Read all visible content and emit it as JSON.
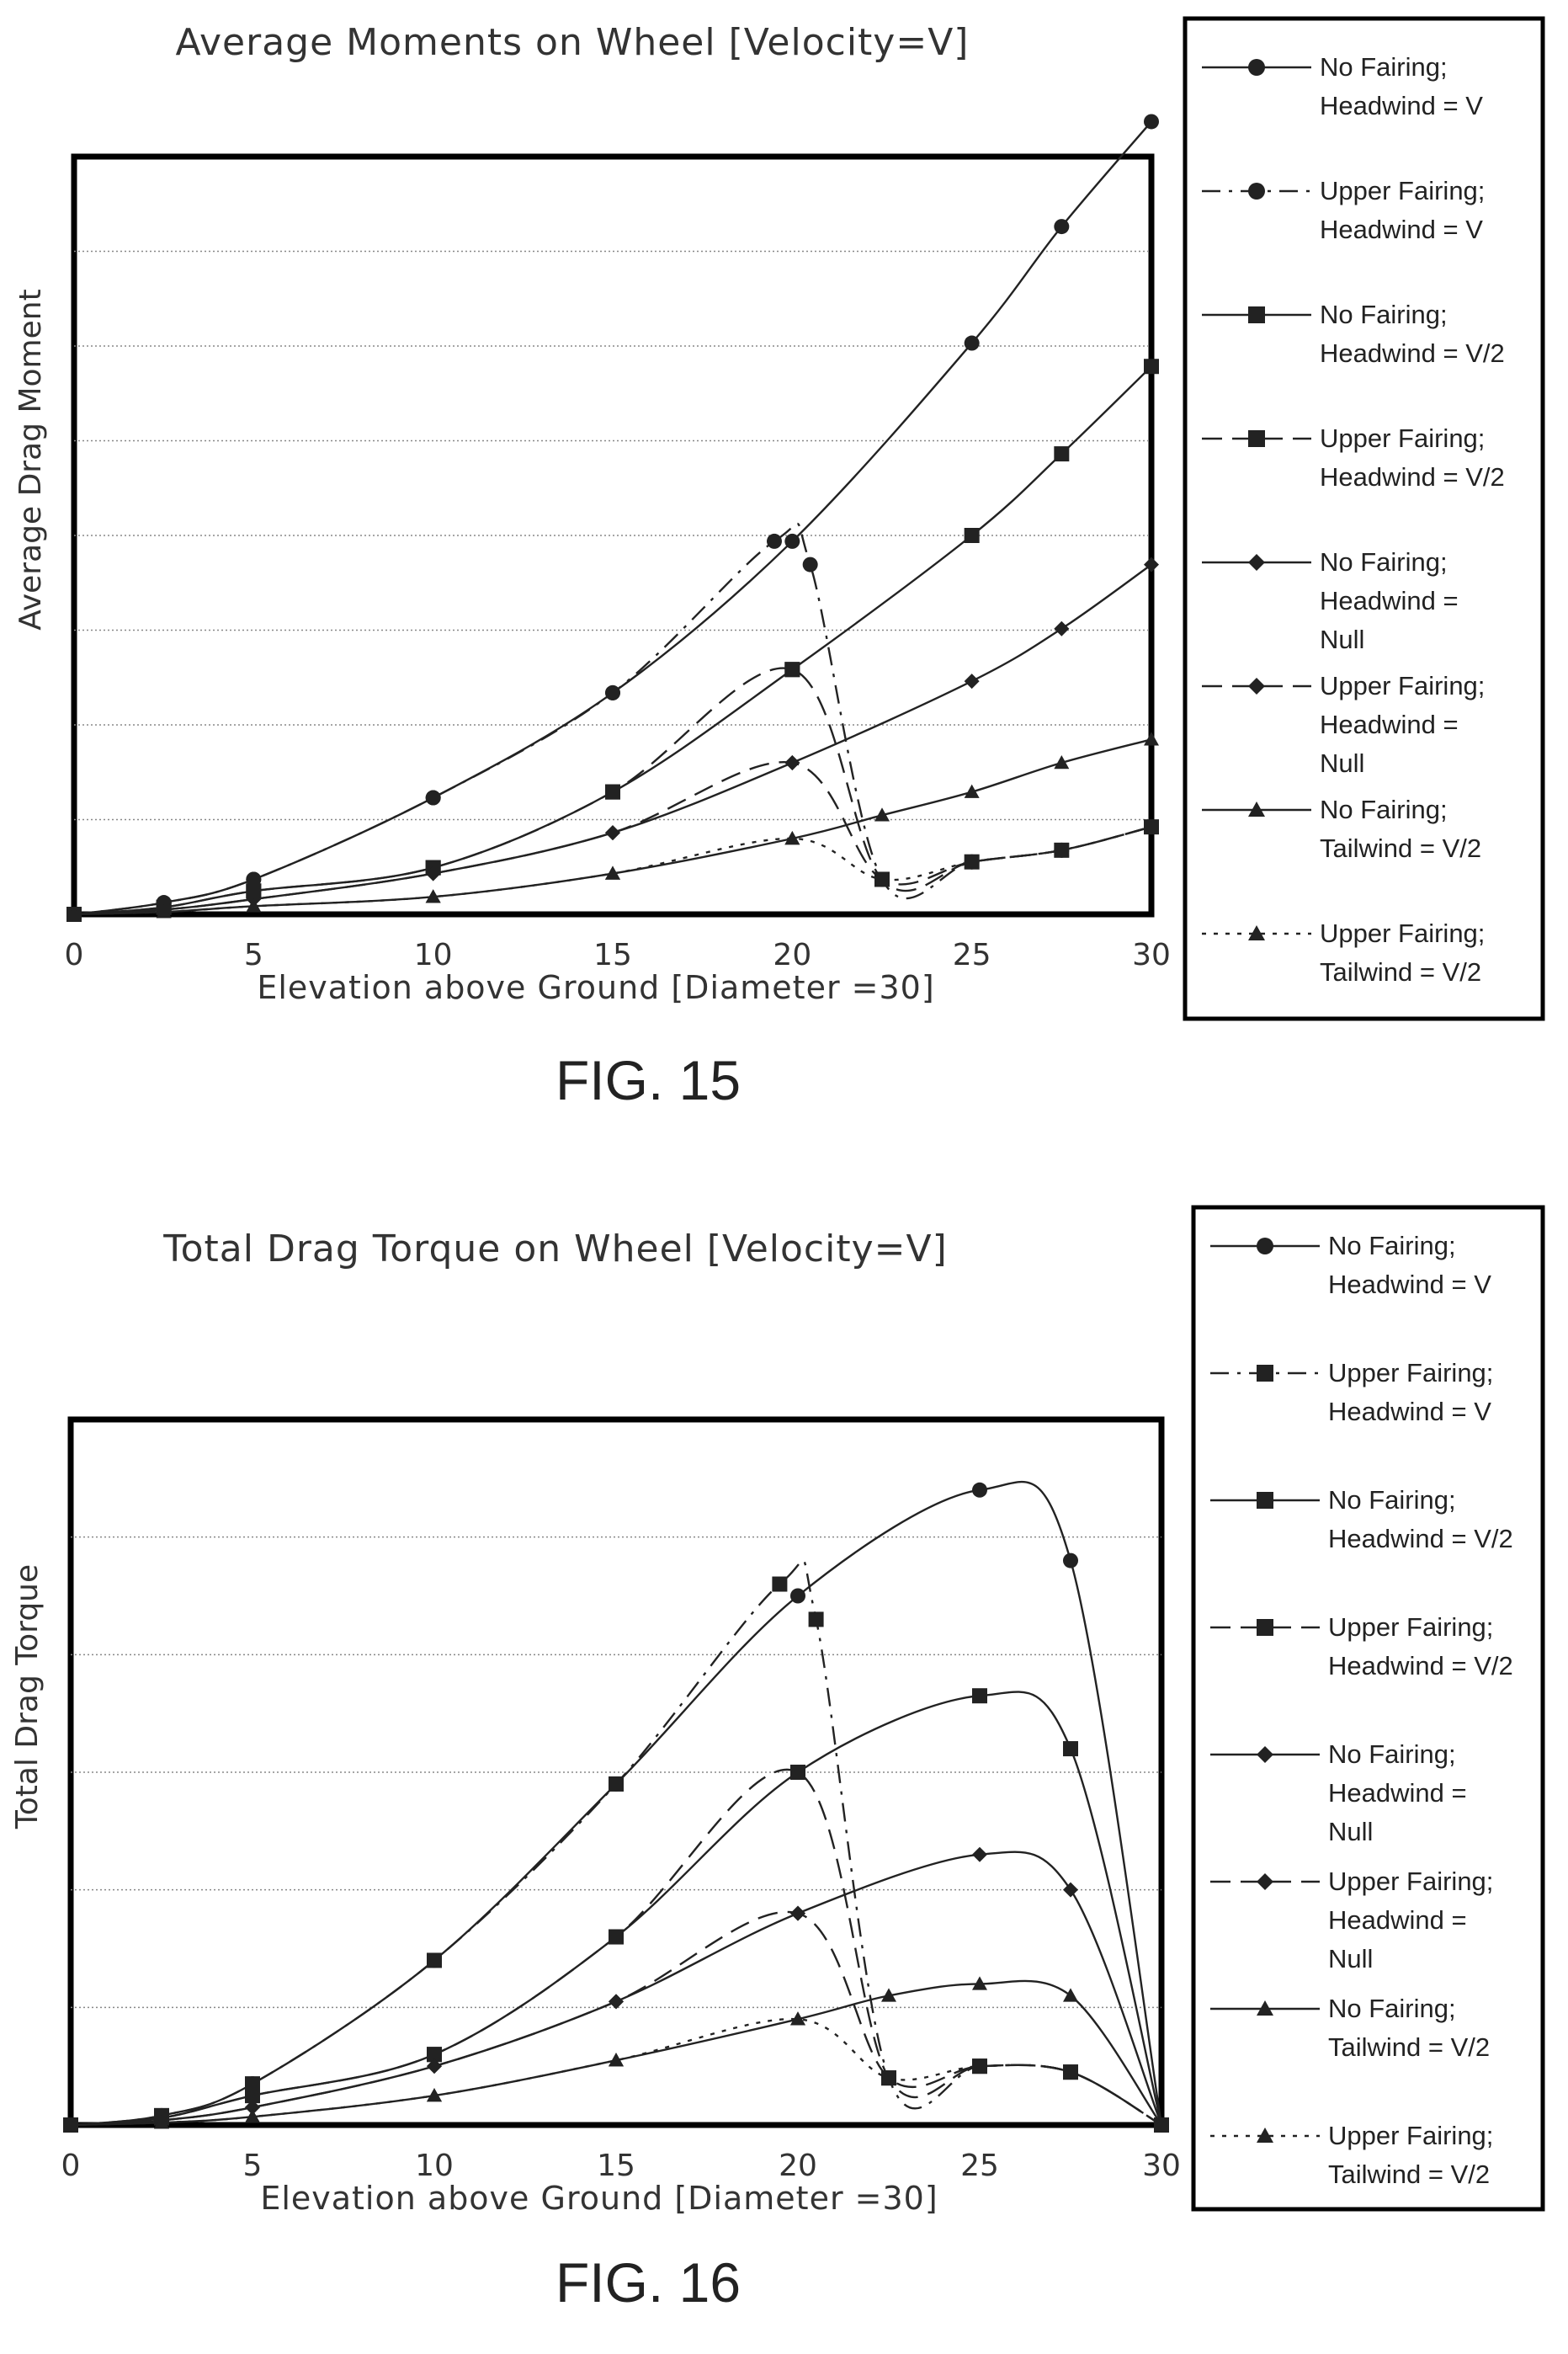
{
  "chart_data": [
    {
      "type": "line",
      "title": "Average Moments on Wheel [Velocity=V]",
      "xlabel": "Elevation above Ground [Diameter =30]",
      "ylabel": "Average Drag Moment",
      "caption": "FIG. 15",
      "x_ticks": [
        "0",
        "5",
        "10",
        "15",
        "20",
        "25",
        "30"
      ],
      "xlim": [
        0,
        30
      ],
      "ylim": [
        0,
        6.5
      ],
      "grid": "horizontal",
      "legend_position": "right",
      "series": [
        {
          "name": "No Fairing; Headwind = V",
          "line": "solid",
          "marker": "circle",
          "x": [
            0,
            2.5,
            5,
            10,
            15,
            20,
            25,
            27.5,
            30
          ],
          "y": [
            0,
            0.1,
            0.3,
            1.0,
            1.9,
            3.2,
            4.9,
            5.9,
            6.8
          ]
        },
        {
          "name": "Upper Fairing; Headwind = V",
          "line": "dashdot",
          "marker": "circle",
          "x": [
            0,
            2.5,
            5,
            10,
            15,
            19.5,
            20.5,
            22.5,
            25,
            27.5,
            30
          ],
          "y": [
            0,
            0.1,
            0.3,
            1.0,
            1.9,
            3.2,
            3.0,
            0.3,
            0.45,
            0.55,
            0.75
          ]
        },
        {
          "name": "No Fairing; Headwind = V/2",
          "line": "solid",
          "marker": "square",
          "x": [
            0,
            2.5,
            5,
            10,
            15,
            20,
            25,
            27.5,
            30
          ],
          "y": [
            0,
            0.06,
            0.2,
            0.4,
            1.05,
            2.1,
            3.25,
            3.95,
            4.7
          ]
        },
        {
          "name": "Upper Fairing; Headwind = V/2",
          "line": "dashed",
          "marker": "square",
          "x": [
            0,
            2.5,
            5,
            10,
            15,
            20,
            22.5,
            25,
            27.5,
            30
          ],
          "y": [
            0,
            0.06,
            0.2,
            0.4,
            1.05,
            2.1,
            0.3,
            0.45,
            0.55,
            0.75
          ]
        },
        {
          "name": "No Fairing; Headwind = Null",
          "line": "solid",
          "marker": "diamond",
          "x": [
            0,
            2.5,
            5,
            10,
            15,
            20,
            25,
            27.5,
            30
          ],
          "y": [
            0,
            0.04,
            0.13,
            0.35,
            0.7,
            1.3,
            2.0,
            2.45,
            3.0
          ]
        },
        {
          "name": "Upper Fairing; Headwind = Null",
          "line": "dashed",
          "marker": "diamond",
          "x": [
            0,
            2.5,
            5,
            10,
            15,
            20,
            22.5,
            25,
            27.5,
            30
          ],
          "y": [
            0,
            0.04,
            0.13,
            0.35,
            0.7,
            1.3,
            0.3,
            0.45,
            0.55,
            0.75
          ]
        },
        {
          "name": "No Fairing; Tailwind = V/2",
          "line": "solid",
          "marker": "triangle",
          "x": [
            0,
            2.5,
            5,
            10,
            15,
            20,
            22.5,
            25,
            27.5,
            30
          ],
          "y": [
            0,
            0.02,
            0.07,
            0.15,
            0.35,
            0.65,
            0.85,
            1.05,
            1.3,
            1.5
          ]
        },
        {
          "name": "Upper Fairing; Tailwind = V/2",
          "line": "dotted",
          "marker": "triangle",
          "x": [
            0,
            2.5,
            5,
            10,
            15,
            20,
            22.5,
            25,
            27.5,
            30
          ],
          "y": [
            0,
            0.02,
            0.07,
            0.15,
            0.35,
            0.65,
            0.3,
            0.45,
            0.55,
            0.75
          ]
        }
      ]
    },
    {
      "type": "line",
      "title": "Total Drag Torque on Wheel [Velocity=V]",
      "xlabel": "Elevation above Ground [Diameter =30]",
      "ylabel": "Total Drag Torque",
      "caption": "FIG. 16",
      "x_ticks": [
        "0",
        "5",
        "10",
        "15",
        "20",
        "25",
        "30"
      ],
      "xlim": [
        0,
        30
      ],
      "ylim": [
        0,
        6
      ],
      "grid": "horizontal",
      "legend_position": "right",
      "series": [
        {
          "name": "No Fairing; Headwind = V",
          "line": "solid",
          "marker": "circle",
          "x": [
            0,
            2.5,
            5,
            10,
            15,
            20,
            25,
            27.5,
            30
          ],
          "y": [
            0,
            0.08,
            0.35,
            1.4,
            2.9,
            4.5,
            5.4,
            4.8,
            0
          ]
        },
        {
          "name": "Upper Fairing; Headwind = V",
          "line": "dashdot",
          "marker": "square",
          "x": [
            0,
            2.5,
            5,
            10,
            15,
            19.5,
            20.5,
            22.5,
            25,
            27.5,
            30
          ],
          "y": [
            0,
            0.08,
            0.35,
            1.4,
            2.9,
            4.6,
            4.3,
            0.4,
            0.5,
            0.45,
            0
          ]
        },
        {
          "name": "No Fairing; Headwind = V/2",
          "line": "solid",
          "marker": "square",
          "x": [
            0,
            2.5,
            5,
            10,
            15,
            20,
            25,
            27.5,
            30
          ],
          "y": [
            0,
            0.06,
            0.25,
            0.6,
            1.6,
            3.0,
            3.65,
            3.2,
            0
          ]
        },
        {
          "name": "Upper Fairing; Headwind = V/2",
          "line": "dashed",
          "marker": "square",
          "x": [
            0,
            2.5,
            5,
            10,
            15,
            20,
            22.5,
            25,
            27.5,
            30
          ],
          "y": [
            0,
            0.06,
            0.25,
            0.6,
            1.6,
            3.0,
            0.4,
            0.5,
            0.45,
            0
          ]
        },
        {
          "name": "No Fairing; Headwind = Null",
          "line": "solid",
          "marker": "diamond",
          "x": [
            0,
            2.5,
            5,
            10,
            15,
            20,
            25,
            27.5,
            30
          ],
          "y": [
            0,
            0.04,
            0.15,
            0.5,
            1.05,
            1.8,
            2.3,
            2.0,
            0
          ]
        },
        {
          "name": "Upper Fairing; Headwind = Null",
          "line": "dashed",
          "marker": "diamond",
          "x": [
            0,
            2.5,
            5,
            10,
            15,
            20,
            22.5,
            25,
            27.5,
            30
          ],
          "y": [
            0,
            0.04,
            0.15,
            0.5,
            1.05,
            1.8,
            0.4,
            0.5,
            0.45,
            0
          ]
        },
        {
          "name": "No Fairing; Tailwind = V/2",
          "line": "solid",
          "marker": "triangle",
          "x": [
            0,
            2.5,
            5,
            10,
            15,
            20,
            22.5,
            25,
            27.5,
            30
          ],
          "y": [
            0,
            0.02,
            0.07,
            0.25,
            0.55,
            0.9,
            1.1,
            1.2,
            1.1,
            0
          ]
        },
        {
          "name": "Upper Fairing; Tailwind = V/2",
          "line": "dotted",
          "marker": "triangle",
          "x": [
            0,
            2.5,
            5,
            10,
            15,
            20,
            22.5,
            25,
            27.5,
            30
          ],
          "y": [
            0,
            0.02,
            0.07,
            0.25,
            0.55,
            0.9,
            0.4,
            0.5,
            0.45,
            0
          ]
        }
      ]
    }
  ]
}
